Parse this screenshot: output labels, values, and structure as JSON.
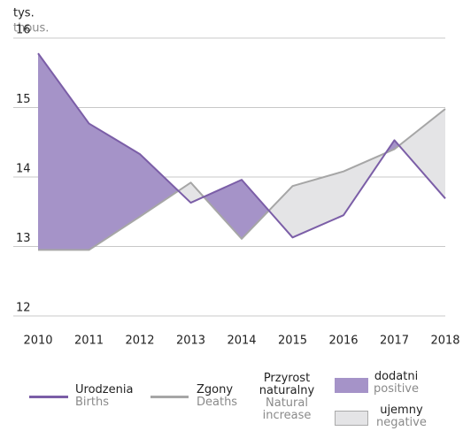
{
  "chart_data": {
    "type": "line",
    "y_label": "tys.",
    "y_label_en": "thous.",
    "categories": [
      "2010",
      "2011",
      "2012",
      "2013",
      "2014",
      "2015",
      "2016",
      "2017",
      "2018"
    ],
    "ylim": [
      12,
      16
    ],
    "yticks": [
      12,
      13,
      14,
      15,
      16
    ],
    "grid": true,
    "series": [
      {
        "name": "Urodzenia",
        "name_en": "Births",
        "color": "#7b5ea7",
        "values": [
          15.78,
          14.77,
          14.33,
          13.63,
          13.96,
          13.13,
          13.45,
          14.53,
          13.69
        ]
      },
      {
        "name": "Zgony",
        "name_en": "Deaths",
        "color": "#a6a6a6",
        "values": [
          12.95,
          12.95,
          13.43,
          13.92,
          13.11,
          13.87,
          14.08,
          14.4,
          14.98
        ]
      }
    ],
    "area_legend": {
      "title": "Przyrost naturalny",
      "title_en": "Natural increase",
      "positive": "dodatni",
      "positive_en": "positive",
      "positive_color": "#a593c8",
      "negative": "ujemny",
      "negative_en": "negative",
      "negative_color": "#e4e4e6"
    }
  }
}
